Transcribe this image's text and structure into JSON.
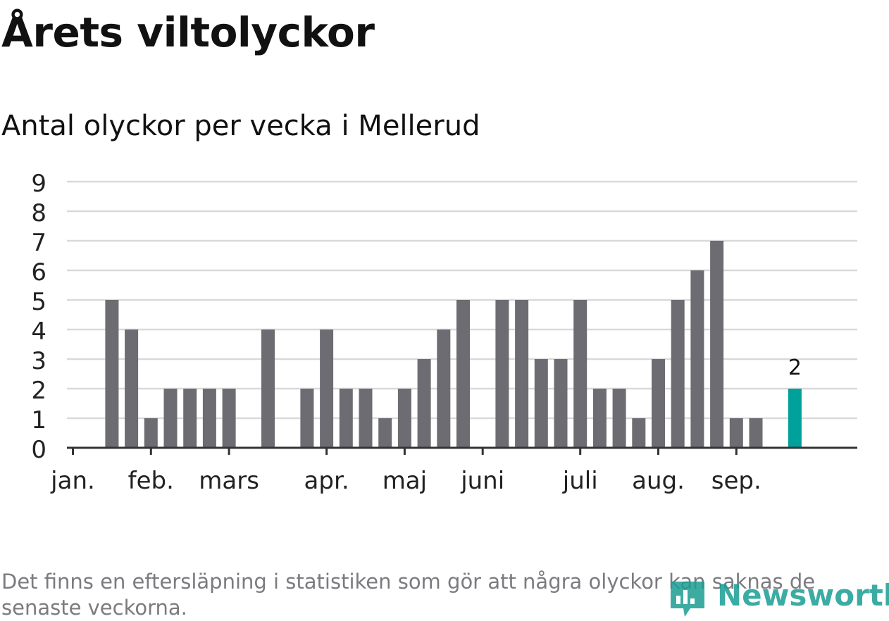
{
  "header": {
    "title": "Årets viltolyckor",
    "subtitle": "Antal olyckor per vecka i Mellerud"
  },
  "footnote": "Det finns en eftersläpning i statistiken som gör att några olyckor kan saknas de senaste veckorna.",
  "logo": {
    "text": "Newsworthy",
    "icon": "bar-chart-logo-icon"
  },
  "colors": {
    "bar": "#6d6c72",
    "highlight": "#00a19a",
    "grid": "#d9d9d9",
    "axis": "#333333",
    "logo": "#1a9e93"
  },
  "chart_data": {
    "type": "bar",
    "title": "",
    "xlabel": "",
    "ylabel": "",
    "ylim": [
      0,
      9
    ],
    "yticks": [
      "0",
      "1",
      "2",
      "3",
      "4",
      "5",
      "6",
      "7",
      "8",
      "9"
    ],
    "grid": true,
    "month_labels": [
      "jan.",
      "feb.",
      "mars",
      "apr.",
      "maj",
      "juni",
      "juli",
      "aug.",
      "sep."
    ],
    "month_tick_weeks": [
      1,
      5,
      9,
      14,
      18,
      22,
      27,
      31,
      35
    ],
    "weeks": [
      1,
      2,
      3,
      4,
      5,
      6,
      7,
      8,
      9,
      10,
      11,
      12,
      13,
      14,
      15,
      16,
      17,
      18,
      19,
      20,
      21,
      22,
      23,
      24,
      25,
      26,
      27,
      28,
      29,
      30,
      31,
      32,
      33,
      34,
      35,
      36,
      37,
      38
    ],
    "values": [
      0,
      0,
      5,
      4,
      1,
      2,
      2,
      2,
      2,
      0,
      4,
      0,
      2,
      4,
      2,
      2,
      1,
      2,
      3,
      4,
      5,
      0,
      5,
      5,
      3,
      3,
      5,
      2,
      2,
      1,
      3,
      5,
      6,
      7,
      1,
      1,
      0,
      2
    ],
    "highlight_index": 37,
    "highlight_label": "2"
  }
}
